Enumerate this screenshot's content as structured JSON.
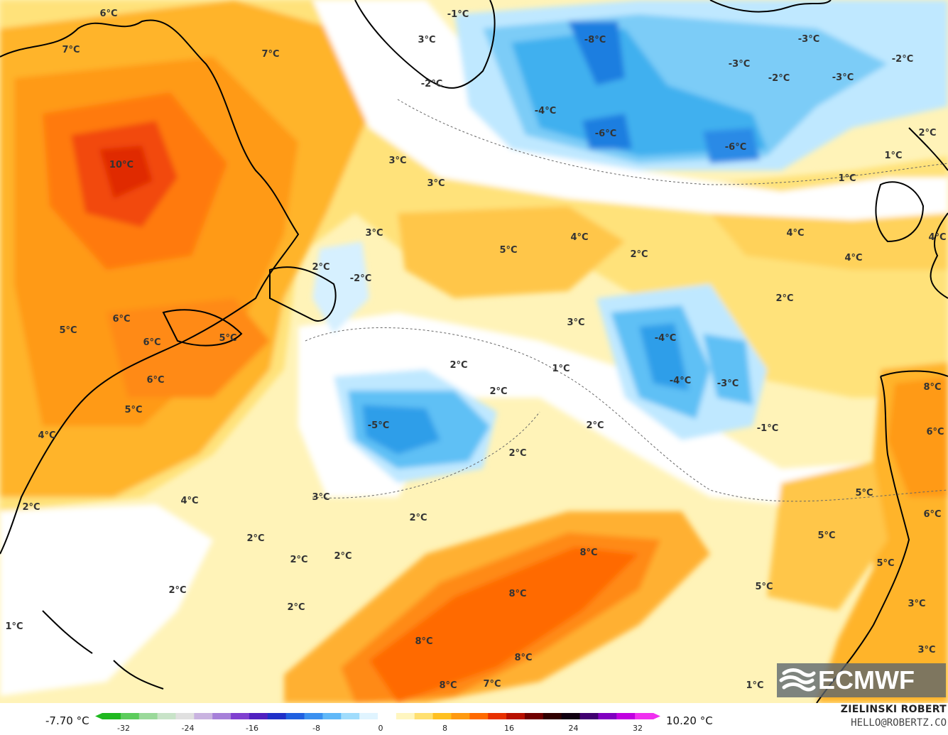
{
  "map": {
    "labels": [
      {
        "text": "6°C"
      },
      {
        "text": "7°C"
      },
      {
        "text": "7°C"
      },
      {
        "text": "3°C"
      },
      {
        "text": "-1°C"
      },
      {
        "text": "-2°C"
      },
      {
        "text": "-8°C"
      },
      {
        "text": "-3°C"
      },
      {
        "text": "-3°C"
      },
      {
        "text": "-2°C"
      },
      {
        "text": "-2°C"
      },
      {
        "text": "-3°C"
      },
      {
        "text": "-4°C"
      },
      {
        "text": "-6°C"
      },
      {
        "text": "-6°C"
      },
      {
        "text": "2°C"
      },
      {
        "text": "1°C"
      },
      {
        "text": "10°C"
      },
      {
        "text": "1°C"
      },
      {
        "text": "3°C"
      },
      {
        "text": "3°C"
      },
      {
        "text": "3°C"
      },
      {
        "text": "5°C"
      },
      {
        "text": "4°C"
      },
      {
        "text": "2°C"
      },
      {
        "text": "4°C"
      },
      {
        "text": "4°C"
      },
      {
        "text": "4°C"
      },
      {
        "text": "2°C"
      },
      {
        "text": "-2°C"
      },
      {
        "text": "2°C"
      },
      {
        "text": "6°C"
      },
      {
        "text": "6°C"
      },
      {
        "text": "5°C"
      },
      {
        "text": "5°C"
      },
      {
        "text": "6°C"
      },
      {
        "text": "3°C"
      },
      {
        "text": "-4°C"
      },
      {
        "text": "2°C"
      },
      {
        "text": "1°C"
      },
      {
        "text": "-4°C"
      },
      {
        "text": "-3°C"
      },
      {
        "text": "8°C"
      },
      {
        "text": "2°C"
      },
      {
        "text": "5°C"
      },
      {
        "text": "4°C"
      },
      {
        "text": "-5°C"
      },
      {
        "text": "2°C"
      },
      {
        "text": "-1°C"
      },
      {
        "text": "6°C"
      },
      {
        "text": "2°C"
      },
      {
        "text": "5°C"
      },
      {
        "text": "4°C"
      },
      {
        "text": "2°C"
      },
      {
        "text": "3°C"
      },
      {
        "text": "2°C"
      },
      {
        "text": "6°C"
      },
      {
        "text": "5°C"
      },
      {
        "text": "2°C"
      },
      {
        "text": "2°C"
      },
      {
        "text": "2°C"
      },
      {
        "text": "8°C"
      },
      {
        "text": "5°C"
      },
      {
        "text": "2°C"
      },
      {
        "text": "8°C"
      },
      {
        "text": "5°C"
      },
      {
        "text": "3°C"
      },
      {
        "text": "2°C"
      },
      {
        "text": "1°C"
      },
      {
        "text": "8°C"
      },
      {
        "text": "8°C"
      },
      {
        "text": "3°C"
      },
      {
        "text": "8°C"
      },
      {
        "text": "7°C"
      },
      {
        "text": "1°C"
      }
    ]
  },
  "legend": {
    "min_label": "-7.70 °C",
    "max_label": "10.20 °C",
    "ticks": [
      "-32",
      "-24",
      "-16",
      "-8",
      "0",
      "8",
      "16",
      "24",
      "32"
    ],
    "colors": [
      "#1fb81f",
      "#5ccc5c",
      "#9ad99a",
      "#c8e3c8",
      "#e0e0e0",
      "#c9b3e0",
      "#a680d9",
      "#8040d0",
      "#5020c0",
      "#2030c8",
      "#2060e0",
      "#3a90f0",
      "#60b8f8",
      "#a0dcfc",
      "#e0f4ff",
      "#ffffff",
      "#fff6c0",
      "#ffe070",
      "#ffc020",
      "#ff9a10",
      "#ff6a00",
      "#e83000",
      "#b81000",
      "#700000",
      "#300000",
      "#100010",
      "#400070",
      "#8000c0",
      "#c000e0",
      "#f030f0"
    ]
  },
  "credit": {
    "name": "ZIELINSKI ROBERT",
    "email": "HELLO@ROBERTZ.CO"
  },
  "logo": {
    "text": "ECMWF"
  }
}
